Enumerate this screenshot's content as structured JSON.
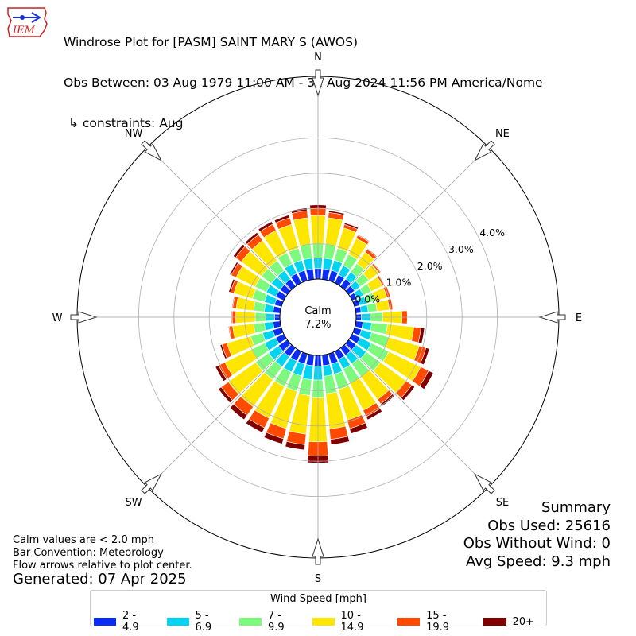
{
  "header": {
    "title": "Windrose Plot for [PASM] SAINT MARY S (AWOS)",
    "subtitle": "Obs Between: 03 Aug 1979 11:00 AM - 31 Aug 2024 11:56 PM America/Nome",
    "constraints": "↳ constraints: Aug",
    "logo_text": "IEM"
  },
  "summary": {
    "heading": "Summary",
    "obs_used": "Obs Used: 25616",
    "obs_without_wind": "Obs Without Wind: 0",
    "avg_speed": "Avg Speed: 9.3 mph"
  },
  "notes": {
    "calm_note": "Calm values are < 2.0 mph",
    "bar_convention": "Bar Convention: Meteorology",
    "flow_arrows": "Flow arrows relative to plot center.",
    "generated": "Generated: 07 Apr 2025"
  },
  "legend": {
    "title": "Wind Speed [mph]",
    "bins": [
      {
        "label": "2 - 4.9",
        "color": "#0a2cf5"
      },
      {
        "label": "5 - 6.9",
        "color": "#00d4f0"
      },
      {
        "label": "7 - 9.9",
        "color": "#7dfa7d"
      },
      {
        "label": "10 - 14.9",
        "color": "#ffe600"
      },
      {
        "label": "15 - 19.9",
        "color": "#ff4a00"
      },
      {
        "label": "20+",
        "color": "#800000"
      }
    ]
  },
  "chart_data": {
    "type": "windrose",
    "calm_label": "Calm",
    "calm_value": "7.2%",
    "radial_ticks": [
      0.0,
      1.0,
      2.0,
      3.0,
      4.0
    ],
    "radial_tick_labels": [
      "0.0%",
      "1.0%",
      "2.0%",
      "3.0%",
      "4.0%"
    ],
    "r_max": 5.0,
    "compass_labels": [
      {
        "label": "N",
        "angle": 0
      },
      {
        "label": "NE",
        "angle": 45
      },
      {
        "label": "E",
        "angle": 90
      },
      {
        "label": "SE",
        "angle": 135
      },
      {
        "label": "S",
        "angle": 180
      },
      {
        "label": "SW",
        "angle": 225
      },
      {
        "label": "W",
        "angle": 270
      },
      {
        "label": "NW",
        "angle": 315
      }
    ],
    "directions": [
      0,
      10,
      20,
      30,
      40,
      50,
      60,
      70,
      80,
      90,
      100,
      110,
      120,
      130,
      140,
      150,
      160,
      170,
      180,
      190,
      200,
      210,
      220,
      230,
      240,
      250,
      260,
      270,
      280,
      290,
      300,
      310,
      320,
      330,
      340,
      350
    ],
    "series": [
      {
        "name": "2 - 4.9",
        "values": [
          0.3,
          0.3,
          0.3,
          0.25,
          0.25,
          0.2,
          0.15,
          0.15,
          0.15,
          0.15,
          0.2,
          0.2,
          0.25,
          0.25,
          0.25,
          0.25,
          0.3,
          0.3,
          0.3,
          0.3,
          0.3,
          0.3,
          0.3,
          0.3,
          0.25,
          0.25,
          0.2,
          0.15,
          0.2,
          0.2,
          0.25,
          0.25,
          0.25,
          0.3,
          0.3,
          0.3
        ]
      },
      {
        "name": "5 - 6.9",
        "values": [
          0.3,
          0.3,
          0.3,
          0.3,
          0.25,
          0.2,
          0.2,
          0.2,
          0.2,
          0.25,
          0.25,
          0.3,
          0.35,
          0.35,
          0.3,
          0.3,
          0.3,
          0.3,
          0.4,
          0.4,
          0.35,
          0.35,
          0.35,
          0.35,
          0.35,
          0.3,
          0.25,
          0.25,
          0.25,
          0.3,
          0.3,
          0.3,
          0.3,
          0.3,
          0.3,
          0.3
        ]
      },
      {
        "name": "7 - 9.9",
        "values": [
          0.4,
          0.4,
          0.35,
          0.35,
          0.3,
          0.3,
          0.25,
          0.25,
          0.25,
          0.35,
          0.45,
          0.5,
          0.55,
          0.5,
          0.45,
          0.45,
          0.45,
          0.5,
          0.5,
          0.45,
          0.45,
          0.45,
          0.45,
          0.45,
          0.4,
          0.35,
          0.3,
          0.3,
          0.3,
          0.35,
          0.35,
          0.35,
          0.35,
          0.35,
          0.35,
          0.4
        ]
      },
      {
        "name": "10 - 14.9",
        "values": [
          0.8,
          0.75,
          0.6,
          0.5,
          0.4,
          0.35,
          0.35,
          0.35,
          0.35,
          0.55,
          0.75,
          0.9,
          1.0,
          0.9,
          0.8,
          0.85,
          0.9,
          1.0,
          1.25,
          1.1,
          1.1,
          1.0,
          0.95,
          0.95,
          0.85,
          0.7,
          0.6,
          0.55,
          0.5,
          0.55,
          0.6,
          0.7,
          0.7,
          0.7,
          0.7,
          0.75
        ]
      },
      {
        "name": "15 - 19.9",
        "values": [
          0.2,
          0.15,
          0.1,
          0.1,
          0.1,
          0.05,
          0.05,
          0.1,
          0.1,
          0.15,
          0.2,
          0.2,
          0.25,
          0.2,
          0.15,
          0.2,
          0.25,
          0.3,
          0.4,
          0.3,
          0.3,
          0.3,
          0.3,
          0.25,
          0.2,
          0.15,
          0.1,
          0.1,
          0.1,
          0.1,
          0.15,
          0.2,
          0.2,
          0.2,
          0.2,
          0.2
        ]
      },
      {
        "name": "20+",
        "values": [
          0.1,
          0.05,
          0.05,
          0.02,
          0.02,
          0.02,
          0.01,
          0.01,
          0.01,
          0.01,
          0.1,
          0.1,
          0.15,
          0.1,
          0.08,
          0.1,
          0.15,
          0.15,
          0.2,
          0.15,
          0.15,
          0.15,
          0.15,
          0.1,
          0.1,
          0.05,
          0.02,
          0.02,
          0.02,
          0.05,
          0.05,
          0.08,
          0.08,
          0.08,
          0.08,
          0.08
        ]
      }
    ]
  }
}
